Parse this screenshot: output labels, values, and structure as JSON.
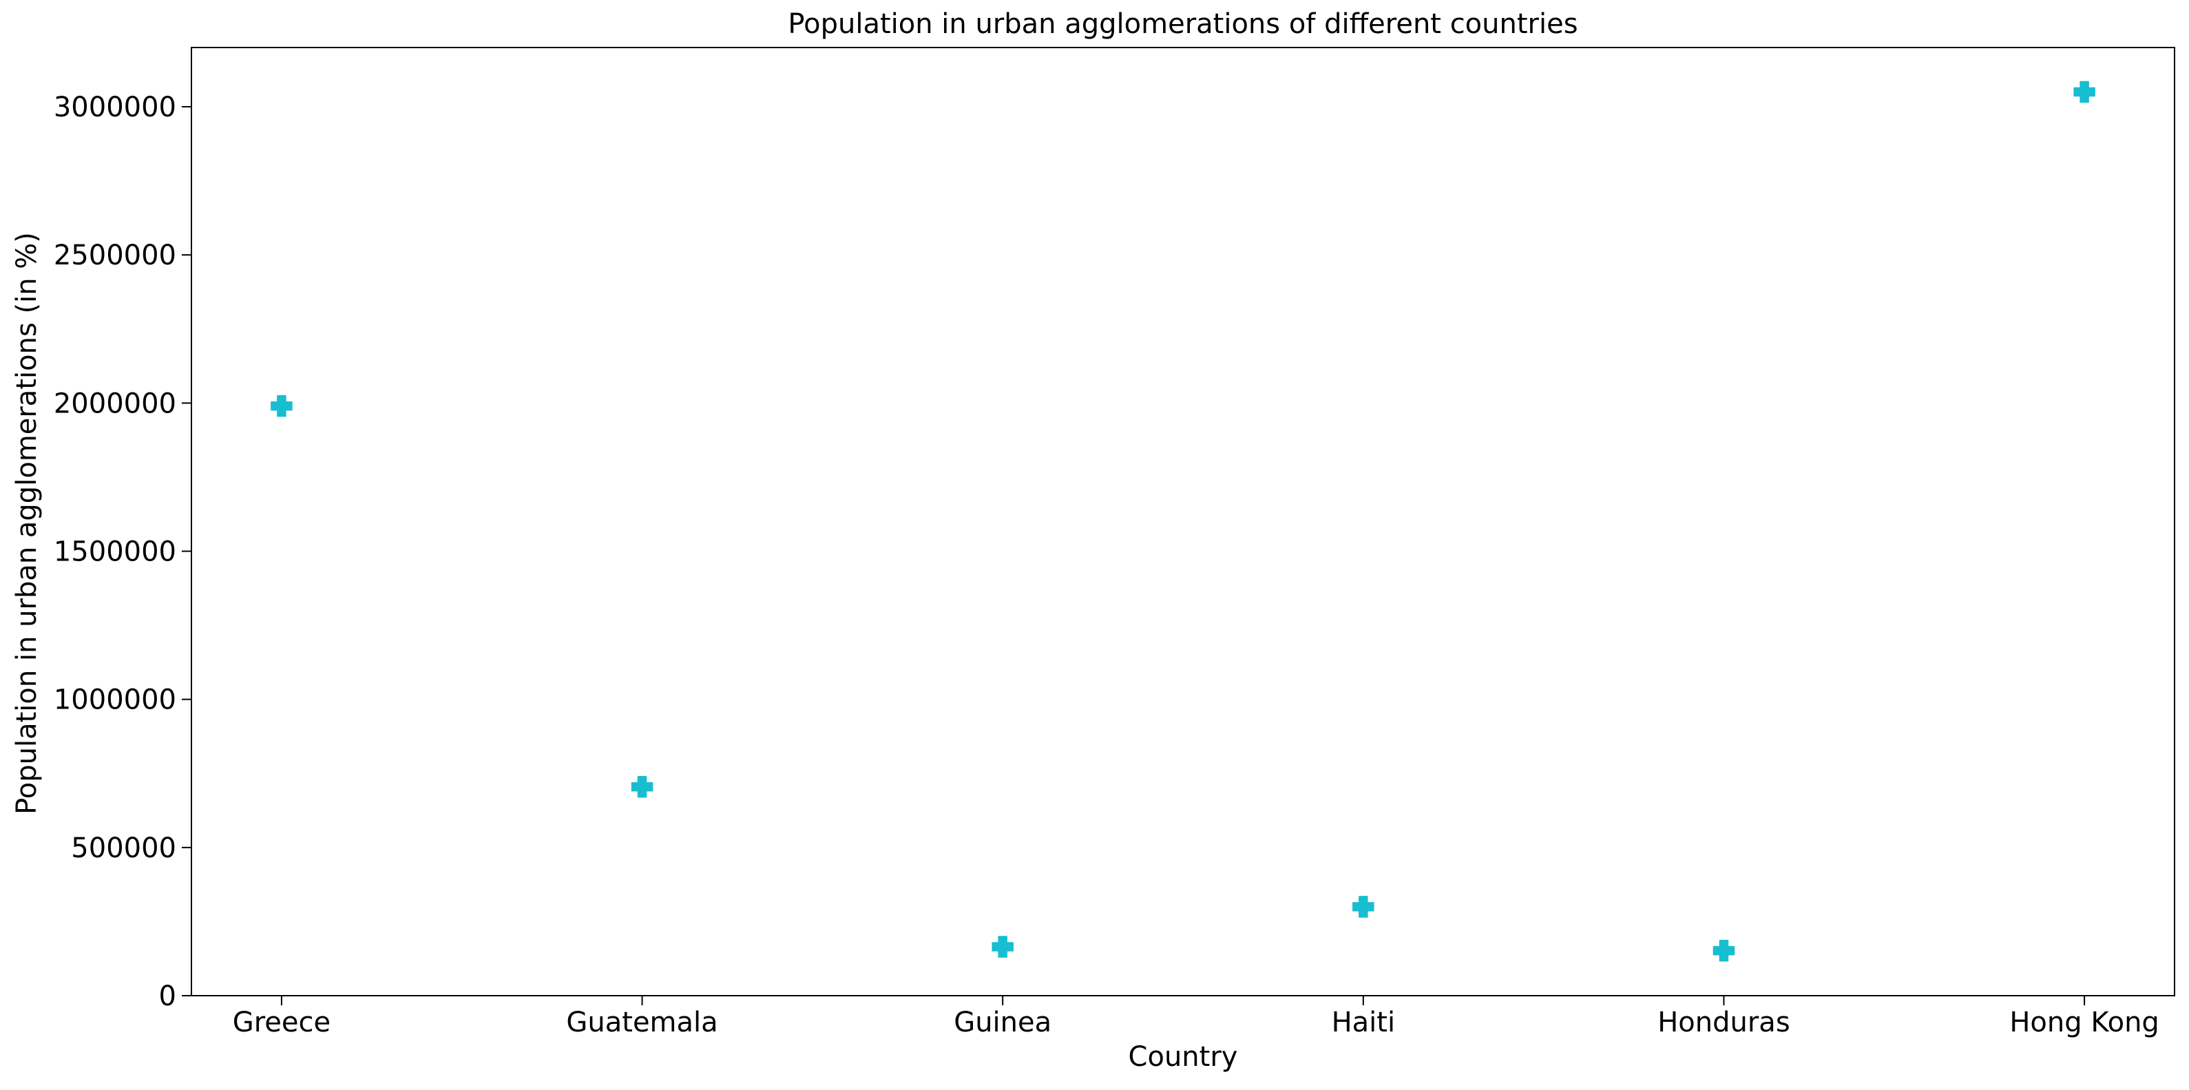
{
  "chart_data": {
    "type": "scatter",
    "title": "Population in urban agglomerations of different countries",
    "xlabel": "Country",
    "ylabel": "Population in urban agglomerations (in %)",
    "categories": [
      "Greece",
      "Guatemala",
      "Guinea",
      "Haiti",
      "Honduras",
      "Hong Kong"
    ],
    "series": [
      {
        "values": [
          1990000,
          705000,
          165000,
          300000,
          152000,
          3050000
        ],
        "color": "#17BECF",
        "marker": "plus-filled"
      }
    ],
    "ylim": [
      0,
      3200000
    ],
    "yticks": [
      0,
      500000,
      1000000,
      1500000,
      2000000,
      2500000,
      3000000
    ],
    "ytick_labels": [
      "0",
      "500000",
      "1000000",
      "1500000",
      "2000000",
      "2500000",
      "3000000"
    ],
    "grid": false,
    "legend": "none"
  }
}
